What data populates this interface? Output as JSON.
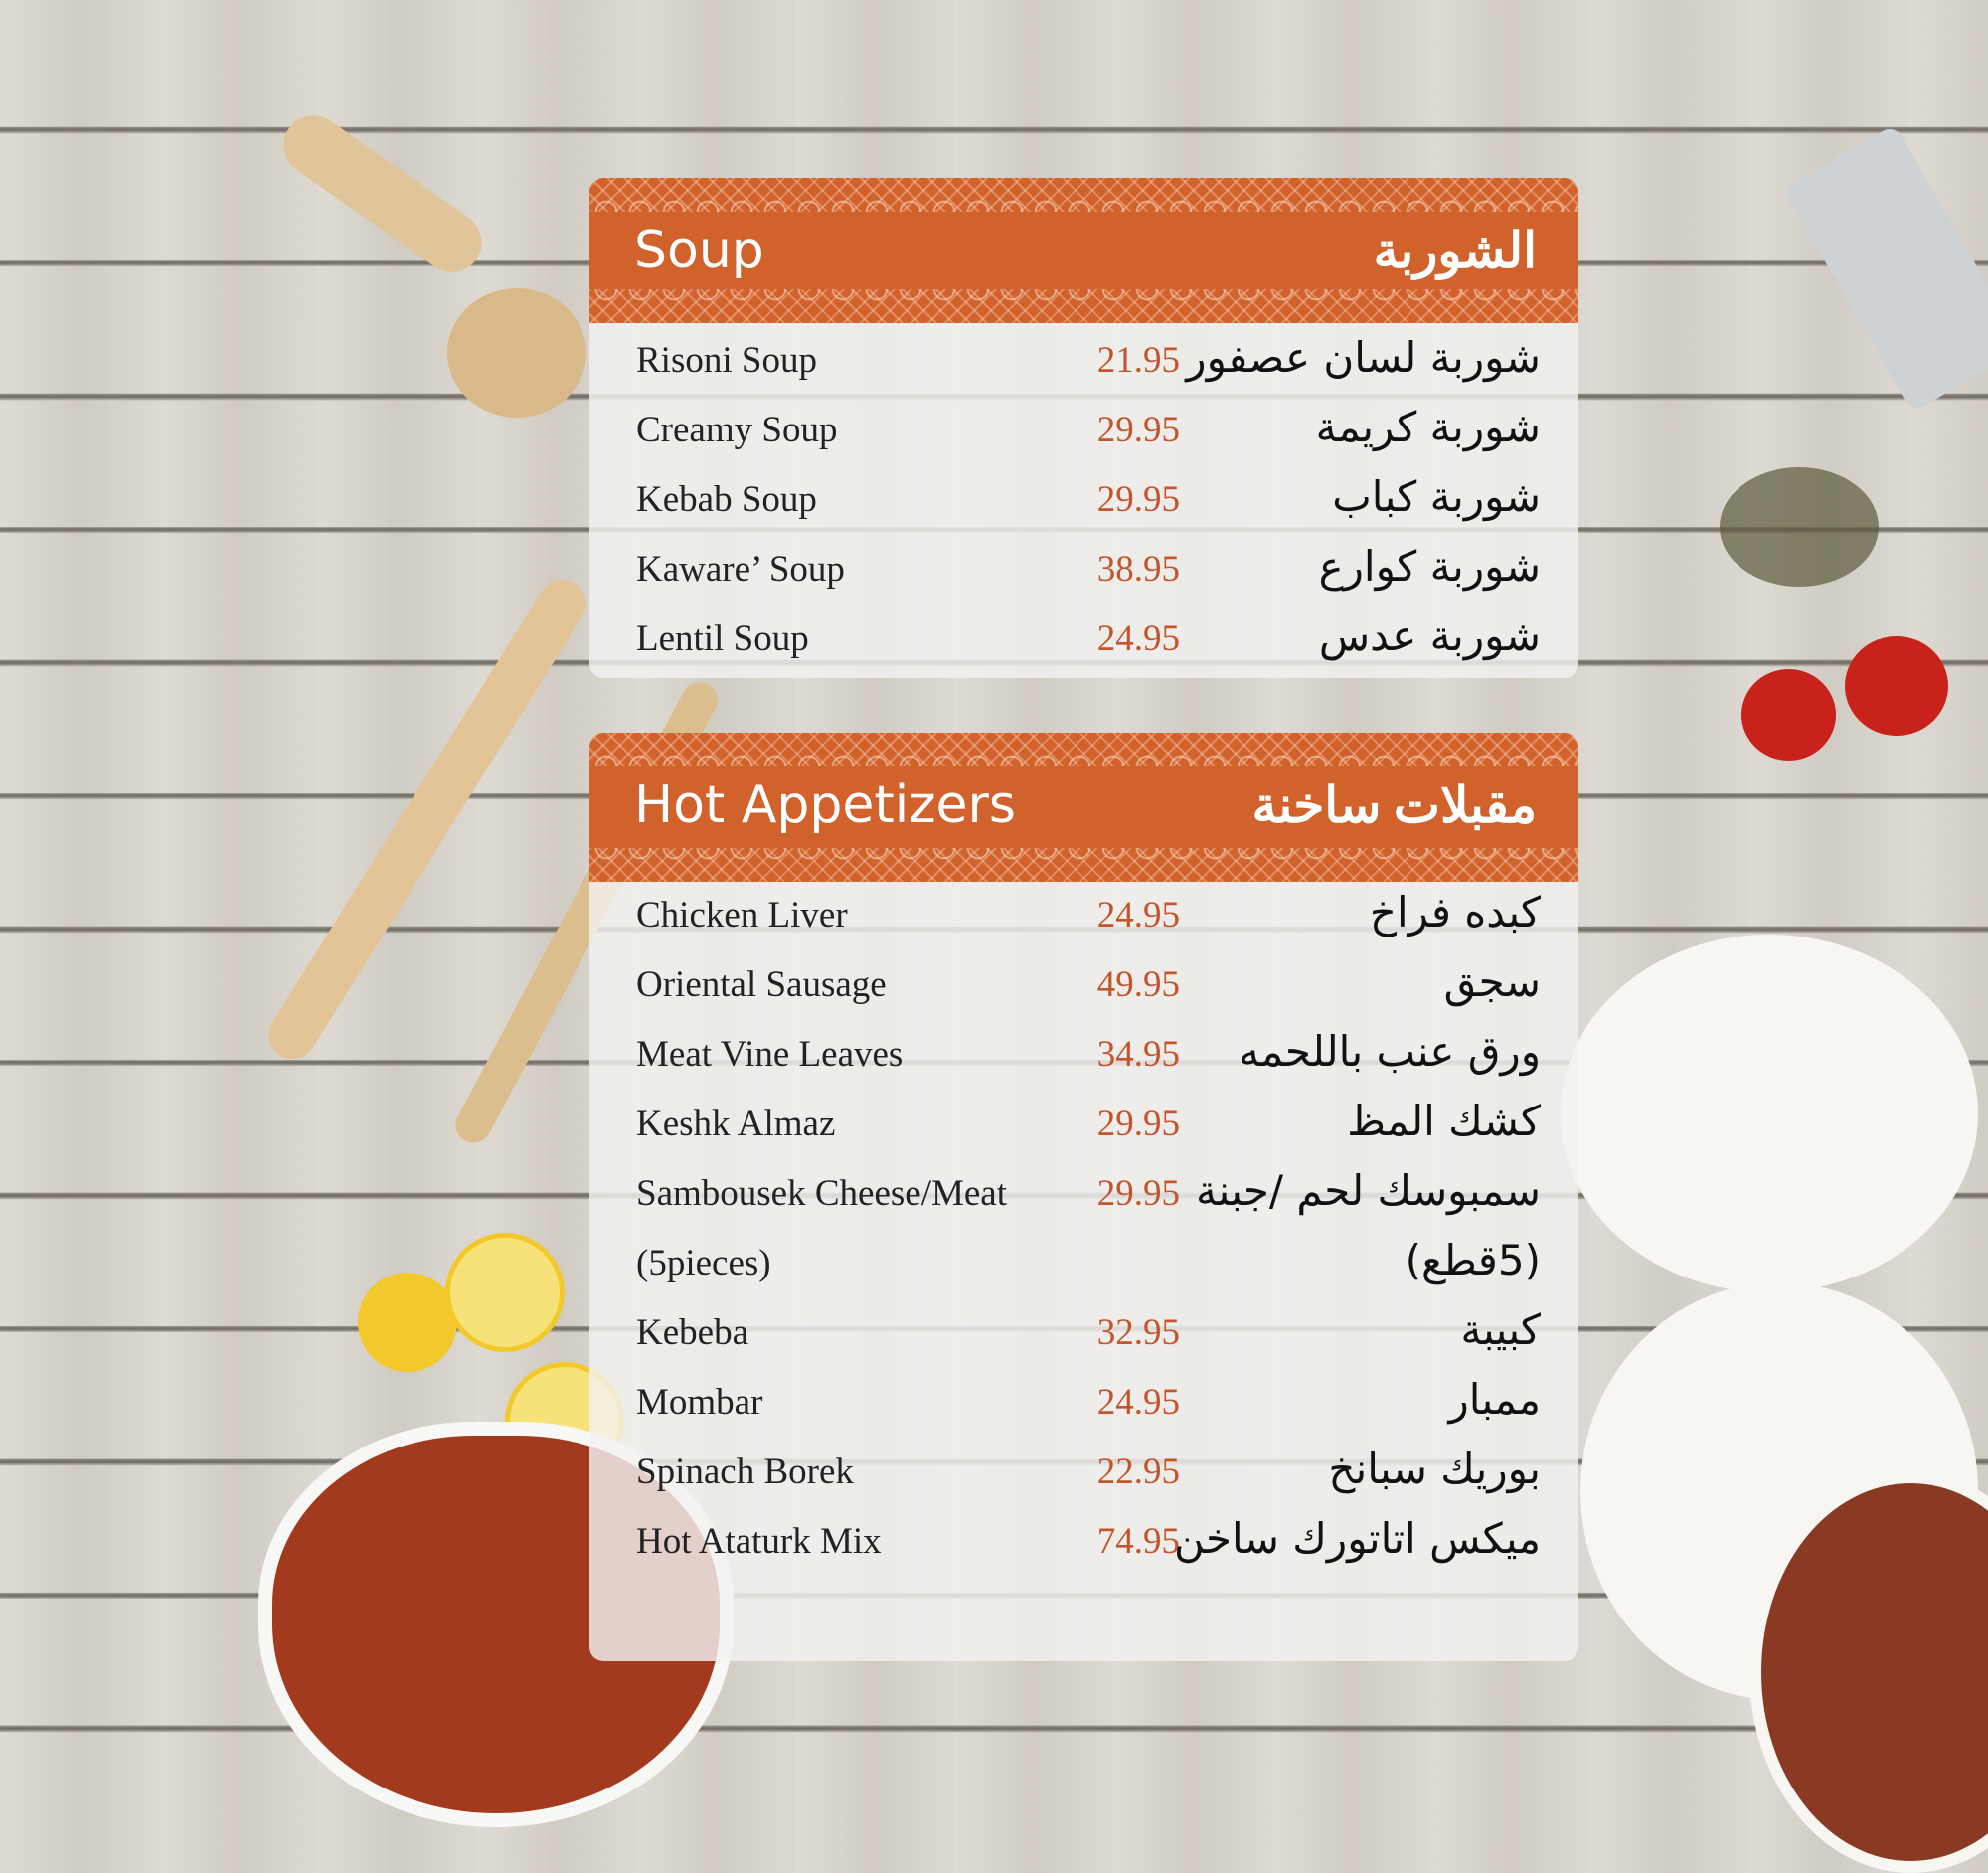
{
  "colors": {
    "accent": "#d2622c",
    "price": "#c4552a",
    "background": "#d8d3cb"
  },
  "sections": [
    {
      "title_en": "Soup",
      "title_ar": "الشوربة",
      "items": [
        {
          "en": "Risoni Soup",
          "price": "21.95",
          "ar": "شوربة لسان عصفور"
        },
        {
          "en": "Creamy Soup",
          "price": "29.95",
          "ar": "شوربة كريمة"
        },
        {
          "en": "Kebab Soup",
          "price": "29.95",
          "ar": "شوربة كباب"
        },
        {
          "en": "Kaware’ Soup",
          "price": "38.95",
          "ar": "شوربة كوارع"
        },
        {
          "en": "Lentil Soup",
          "price": "24.95",
          "ar": "شوربة عدس"
        }
      ]
    },
    {
      "title_en": "Hot Appetizers",
      "title_ar": "مقبلات ساخنة",
      "items": [
        {
          "en": "Chicken Liver",
          "price": "24.95",
          "ar": "كبده فراخ"
        },
        {
          "en": "Oriental Sausage",
          "price": "49.95",
          "ar": "سجق"
        },
        {
          "en": "Meat Vine Leaves",
          "price": "34.95",
          "ar": "ورق عنب باللحمه"
        },
        {
          "en": "Keshk Almaz",
          "price": "29.95",
          "ar": "كشك المظ"
        },
        {
          "en": "Sambousek Cheese/Meat",
          "price": "29.95",
          "ar": "سمبوسك لحم /جبنة"
        },
        {
          "en": "(5pieces)",
          "price": "",
          "ar": "(5قطع)"
        },
        {
          "en": "Kebeba",
          "price": "32.95",
          "ar": "كبيبة"
        },
        {
          "en": "Mombar",
          "price": "24.95",
          "ar": "ممبار"
        },
        {
          "en": "Spinach Borek",
          "price": "22.95",
          "ar": "بوريك سبانخ"
        },
        {
          "en": "Hot Ataturk Mix",
          "price": "74.95",
          "ar": "ميكس اتاتورك ساخن"
        }
      ]
    }
  ]
}
